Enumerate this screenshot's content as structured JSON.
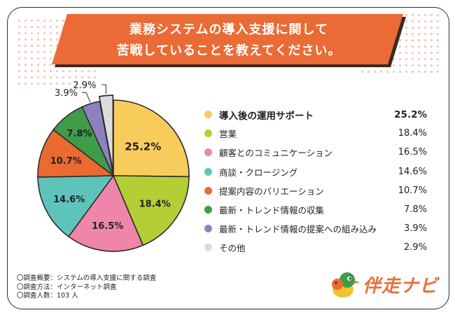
{
  "title": {
    "line1": "業務システムの導入支援に関して",
    "line2": "苦戦していることを教えてください。"
  },
  "colors": {
    "banner": "#ea6b35",
    "banner_shadow": "#3a2a20",
    "dots": "#f4c7bd"
  },
  "chart_data": {
    "type": "pie",
    "title": "業務システムの導入支援に関して苦戦していることを教えてください。",
    "unit": "%",
    "slices": [
      {
        "label": "導入後の運用サポート",
        "value": 25.2,
        "display": "25.2%",
        "color": "#f7cc5a"
      },
      {
        "label": "営業",
        "value": 18.4,
        "display": "18.4%",
        "color": "#b4cf35"
      },
      {
        "label": "顧客とのコミュニケーション",
        "value": 16.5,
        "display": "16.5%",
        "color": "#ef86a9"
      },
      {
        "label": "商談・クロージング",
        "value": 14.6,
        "display": "14.6%",
        "color": "#5ec4bb"
      },
      {
        "label": "提案内容のバリエーション",
        "value": 10.7,
        "display": "10.7%",
        "color": "#eb6a32"
      },
      {
        "label": "最新・トレンド情報の収集",
        "value": 7.8,
        "display": "7.8%",
        "color": "#3f9c49"
      },
      {
        "label": "最新・トレンド情報の提案への組み込み",
        "value": 3.9,
        "display": "3.9%",
        "color": "#8e82be"
      },
      {
        "label": "その他",
        "value": 2.9,
        "display": "2.9%",
        "color": "#dcdcdc"
      }
    ]
  },
  "notes": [
    "〇調査概要：システムの導入支援に関する調査",
    "〇調査方法：インターネット調査",
    "〇調査人数：103 人"
  ],
  "logo": {
    "text": "伴走ナビ",
    "icon": "bird-mascot-icon"
  }
}
